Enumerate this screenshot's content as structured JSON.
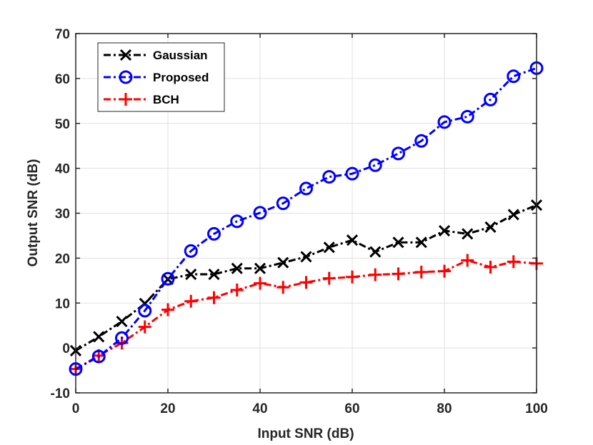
{
  "chart_data": {
    "type": "line",
    "title": "",
    "xlabel": "Input SNR (dB)",
    "ylabel": "Output SNR (dB)",
    "xlim": [
      0,
      100
    ],
    "ylim": [
      -10,
      70
    ],
    "xticks": [
      0,
      20,
      40,
      60,
      80,
      100
    ],
    "yticks": [
      -10,
      0,
      10,
      20,
      30,
      40,
      50,
      60,
      70
    ],
    "grid": true,
    "legend_position": "top-left",
    "x": [
      0,
      5,
      10,
      15,
      20,
      25,
      30,
      35,
      40,
      45,
      50,
      55,
      60,
      65,
      70,
      75,
      80,
      85,
      90,
      95,
      100
    ],
    "series": [
      {
        "name": "Gaussian",
        "color": "#000000",
        "marker": "x",
        "values": [
          -0.6,
          2.5,
          5.9,
          9.9,
          15.3,
          16.4,
          16.4,
          17.7,
          17.7,
          19.0,
          20.3,
          22.4,
          24.0,
          21.4,
          23.5,
          23.5,
          26.1,
          25.4,
          26.9,
          29.7,
          31.8
        ]
      },
      {
        "name": "Proposed",
        "color": "#0000ff",
        "marker": "o",
        "values": [
          -4.7,
          -1.9,
          2.2,
          8.3,
          15.4,
          21.6,
          25.4,
          28.2,
          30.1,
          32.2,
          35.5,
          38.1,
          38.8,
          40.7,
          43.3,
          46.1,
          50.3,
          51.5,
          55.3,
          60.5,
          62.3
        ]
      },
      {
        "name": "BCH",
        "color": "#ff0000",
        "marker": "+",
        "values": [
          -4.7,
          -1.7,
          1.1,
          4.7,
          8.5,
          10.4,
          11.2,
          12.9,
          14.4,
          13.5,
          14.6,
          15.5,
          15.8,
          16.3,
          16.5,
          16.9,
          17.1,
          19.5,
          18.0,
          19.2,
          18.8
        ]
      }
    ]
  }
}
